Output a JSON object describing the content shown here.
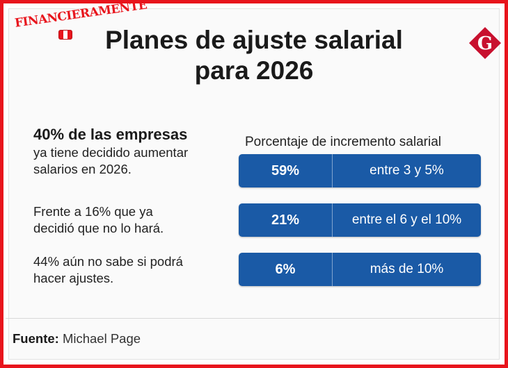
{
  "brand": {
    "watermark": "FINANCIERAMENTE",
    "logo_letter": "G",
    "logo_color": "#c8102e"
  },
  "title": {
    "line1": "Planes de ajuste salarial",
    "line2": "para 2026"
  },
  "left_text": {
    "headline": "40% de las empresas",
    "headline_rest_line1": "ya tiene decidido aumentar",
    "headline_rest_line2": "salarios en 2026.",
    "stat2_line1": "Frente a 16% que ya",
    "stat2_line2": "decidió que no lo hará.",
    "stat3_line1": "44% aún no sabe si podrá",
    "stat3_line2": "hacer ajustes."
  },
  "chart_data": {
    "type": "table",
    "title": "Porcentaje de incremento salarial",
    "bar_color": "#1a5aa6",
    "rows": [
      {
        "value": "59%",
        "percent": 59,
        "category": "entre 3 y 5%"
      },
      {
        "value": "21%",
        "percent": 21,
        "category": "entre el 6 y el 10%"
      },
      {
        "value": "6%",
        "percent": 6,
        "category": "más de 10%"
      }
    ]
  },
  "footer": {
    "source_label": "Fuente:",
    "source_value": "Michael Page"
  }
}
